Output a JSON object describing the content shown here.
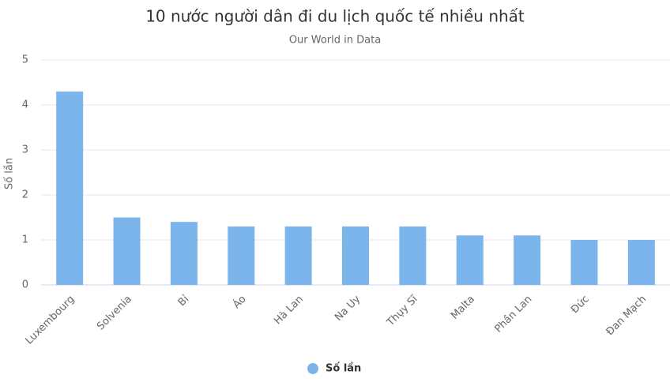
{
  "chart_data": {
    "type": "bar",
    "title": "10 nước người dân đi du lịch quốc tế nhiều nhất",
    "subtitle": "Our World in Data",
    "y_label": "Số lần",
    "categories": [
      "Luxembourg",
      "Solvenia",
      "Bỉ",
      "Áo",
      "Hà Lan",
      "Na Uy",
      "Thụy Sĩ",
      "Malta",
      "Phần Lan",
      "Đức",
      "Đan Mạch"
    ],
    "series": [
      {
        "name": "Số lần",
        "color": "#7cb5ec",
        "values": [
          4.3,
          1.5,
          1.4,
          1.3,
          1.3,
          1.3,
          1.3,
          1.1,
          1.1,
          1.0,
          1.0
        ]
      }
    ],
    "ylim": [
      0,
      5
    ],
    "yticks": [
      0,
      1,
      2,
      3,
      4,
      5
    ],
    "grid": true,
    "legend": "bottom"
  }
}
